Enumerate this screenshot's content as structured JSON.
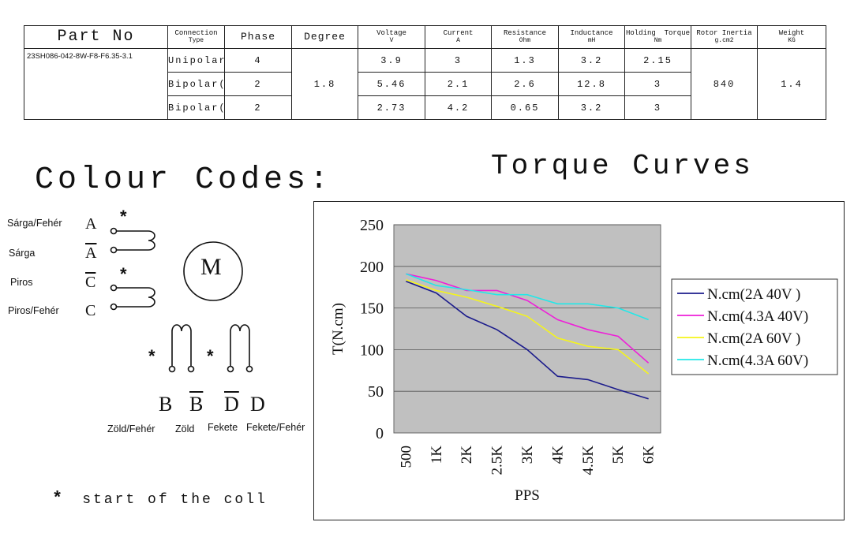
{
  "spec_table": {
    "headers": {
      "part_no": "Part No",
      "connection": "Connection",
      "connection_sub": "Type",
      "phase": "Phase",
      "degree": "Degree",
      "voltage": "Voltage",
      "voltage_unit": "V",
      "current": "Current",
      "current_unit": "A",
      "resistance": "Resistance",
      "resistance_unit": "Ohm",
      "inductance": "Inductance",
      "inductance_unit": "mH",
      "holding": "Holding  Torque",
      "holding_unit": "Nm",
      "inertia": "Rotor Inertia",
      "inertia_unit": "g.cm2",
      "weight": "Weight",
      "weight_unit": "KG"
    },
    "part_number": "23SH086-042-8W-F8-F6.35-3.1",
    "degree": "1.8",
    "rotor_inertia": "840",
    "weight": "1.4",
    "rows": [
      {
        "type": "Unipolar",
        "phase": "4",
        "voltage": "3.9",
        "current": "3",
        "resistance": "1.3",
        "inductance": "3.2",
        "holding": "2.15"
      },
      {
        "type": "Bipolar(S)",
        "phase": "2",
        "voltage": "5.46",
        "current": "2.1",
        "resistance": "2.6",
        "inductance": "12.8",
        "holding": "3"
      },
      {
        "type": "Bipolar(P)",
        "phase": "2",
        "voltage": "2.73",
        "current": "4.2",
        "resistance": "0.65",
        "inductance": "3.2",
        "holding": "3"
      }
    ]
  },
  "colour_codes": {
    "title": "Colour Codes:",
    "wires": {
      "a_label": "Sárga/Fehér",
      "a_letter": "A",
      "abar_label": "Sárga",
      "abar_letter": "A",
      "cbar_label": "Piros",
      "cbar_letter": "C",
      "c_label": "Piros/Fehér",
      "c_letter": "C",
      "b_letter": "B",
      "b_label": "Zöld/Fehér",
      "bbar_letter": "B",
      "bbar_label": "Zöld",
      "dbar_letter": "D",
      "dbar_label": "Fekete",
      "d_letter": "D",
      "d_label": "Fekete/Fehér"
    },
    "motor_symbol": "M",
    "star_symbol": "*",
    "legend_star": "*",
    "legend_text": "start of the coll"
  },
  "torque_curves": {
    "title": "Torque Curves"
  },
  "colors": {
    "plot_bg": "#c0c0c0",
    "series": [
      "#1c1c8c",
      "#ee1fd8",
      "#f5f51a",
      "#22e8e8"
    ]
  },
  "chart_data": {
    "type": "line",
    "title": "Torque Curves",
    "xlabel": "PPS",
    "ylabel": "T(N.cm)",
    "categories": [
      "500",
      "1K",
      "2K",
      "2.5K",
      "3K",
      "4K",
      "4.5K",
      "5K",
      "6K"
    ],
    "ylim": [
      0,
      250
    ],
    "yticks": [
      0,
      50,
      100,
      150,
      200,
      250
    ],
    "grid": true,
    "legend_position": "right",
    "series": [
      {
        "name": "N.cm(2A 40V )",
        "color": "#1c1c8c",
        "values": [
          182,
          168,
          140,
          124,
          100,
          68,
          64,
          52,
          41
        ]
      },
      {
        "name": "N.cm(4.3A 40V)",
        "color": "#ee1fd8",
        "values": [
          191,
          183,
          171,
          171,
          159,
          136,
          124,
          116,
          84
        ]
      },
      {
        "name": "N.cm(2A 60V )",
        "color": "#f5f51a",
        "values": [
          184,
          171,
          163,
          152,
          140,
          114,
          104,
          100,
          71
        ]
      },
      {
        "name": "N.cm(4.3A 60V)",
        "color": "#22e8e8",
        "values": [
          191,
          177,
          172,
          166,
          166,
          155,
          155,
          150,
          136
        ]
      }
    ]
  }
}
